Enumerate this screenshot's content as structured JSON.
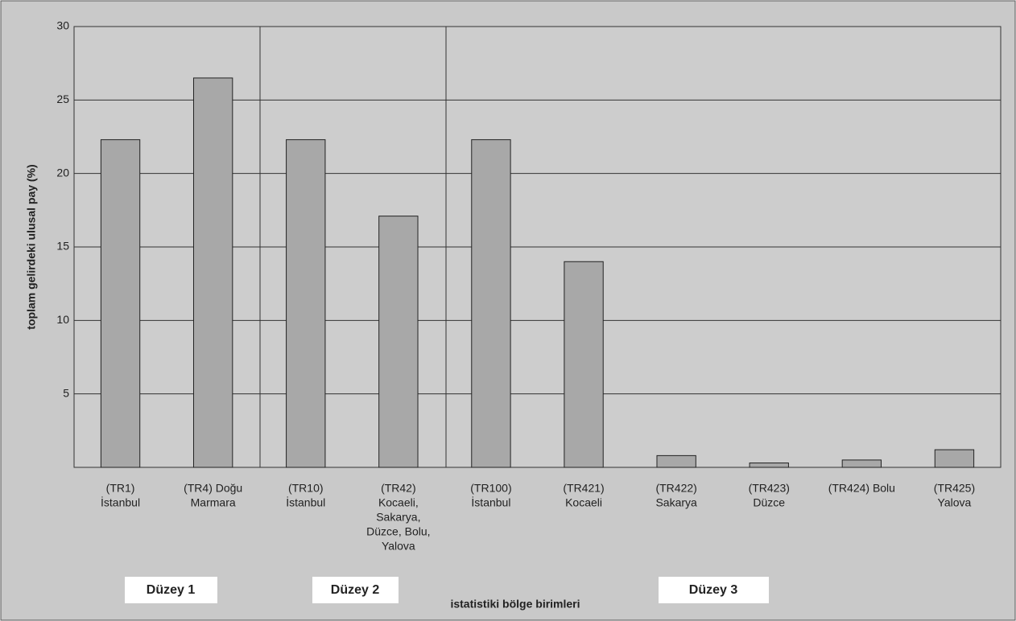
{
  "chart_data": {
    "type": "bar",
    "y_label": "toplam gelirdeki ulusal pay (%)",
    "x_label": "istatistiki bölge birimleri",
    "categories": [
      [
        "(TR1)",
        "İstanbul"
      ],
      [
        "(TR4) Doğu",
        "Marmara"
      ],
      [
        "(TR10)",
        "İstanbul"
      ],
      [
        "(TR42)",
        "Kocaeli,",
        "Sakarya,",
        "Düzce, Bolu,",
        "Yalova"
      ],
      [
        "(TR100)",
        "İstanbul"
      ],
      [
        "(TR421)",
        "Kocaeli"
      ],
      [
        "(TR422)",
        "Sakarya"
      ],
      [
        "(TR423)",
        "Düzce"
      ],
      [
        "(TR424) Bolu"
      ],
      [
        "(TR425)",
        "Yalova"
      ]
    ],
    "values": [
      22.3,
      26.5,
      22.3,
      17.1,
      22.3,
      14.0,
      0.8,
      0.3,
      0.5,
      1.2
    ],
    "color": "#a8a8a8",
    "ylim": [
      0,
      30
    ],
    "yticks": [
      5,
      10,
      15,
      20,
      25,
      30
    ],
    "grid": true,
    "groups": [
      "Düzey 1",
      "Düzey 2",
      "Düzey 3"
    ]
  }
}
